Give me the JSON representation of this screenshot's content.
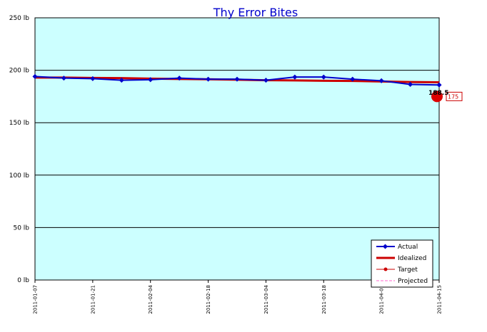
{
  "chart_data": {
    "type": "line",
    "title": "Thy Error Bites",
    "y_unit": "lb",
    "ylim": [
      0,
      250
    ],
    "y_ticks": [
      "0 lb",
      "50 lb",
      "100 lb",
      "150 lb",
      "200 lb",
      "250 lb"
    ],
    "x_range": [
      "2011-01-07",
      "2011-04-15"
    ],
    "x_ticks": [
      "2011-01-07",
      "2011-01-21",
      "2011-02-04",
      "2011-02-18",
      "2011-03-04",
      "2011-03-18",
      "2011-04-01",
      "2011-04-15"
    ],
    "grid": true,
    "legend_position": "bottom-right",
    "series": [
      {
        "name": "Actual",
        "color": "#0000cc",
        "x": [
          "2011-01-07",
          "2011-01-14",
          "2011-01-21",
          "2011-01-28",
          "2011-02-04",
          "2011-02-11",
          "2011-02-18",
          "2011-02-25",
          "2011-03-04",
          "2011-03-11",
          "2011-03-18",
          "2011-03-25",
          "2011-04-01",
          "2011-04-08",
          "2011-04-15"
        ],
        "values": [
          194,
          192.5,
          192,
          190.5,
          191,
          192.5,
          191.5,
          191.5,
          190.5,
          193.5,
          193.5,
          191.5,
          190,
          186.5,
          186
        ]
      },
      {
        "name": "Idealized",
        "color": "#cc0000",
        "x": [
          "2011-01-07",
          "2011-01-14",
          "2011-01-21",
          "2011-01-28",
          "2011-02-04",
          "2011-02-11",
          "2011-02-18",
          "2011-02-25",
          "2011-03-04",
          "2011-03-11",
          "2011-03-18",
          "2011-03-25",
          "2011-04-01",
          "2011-04-08",
          "2011-04-15"
        ],
        "values": [
          193,
          193,
          192.7,
          192.5,
          192,
          191.7,
          191.4,
          191,
          190.5,
          190.3,
          190,
          189.8,
          189.3,
          188.8,
          188.5
        ]
      },
      {
        "name": "Target",
        "color": "#cc0000",
        "x": [
          "2011-04-15"
        ],
        "values": [
          175
        ]
      },
      {
        "name": "Projected",
        "color": "#ff66cc",
        "x": [],
        "values": []
      }
    ],
    "annotations": {
      "last_value_label": "188.5",
      "target_label": "175"
    }
  }
}
